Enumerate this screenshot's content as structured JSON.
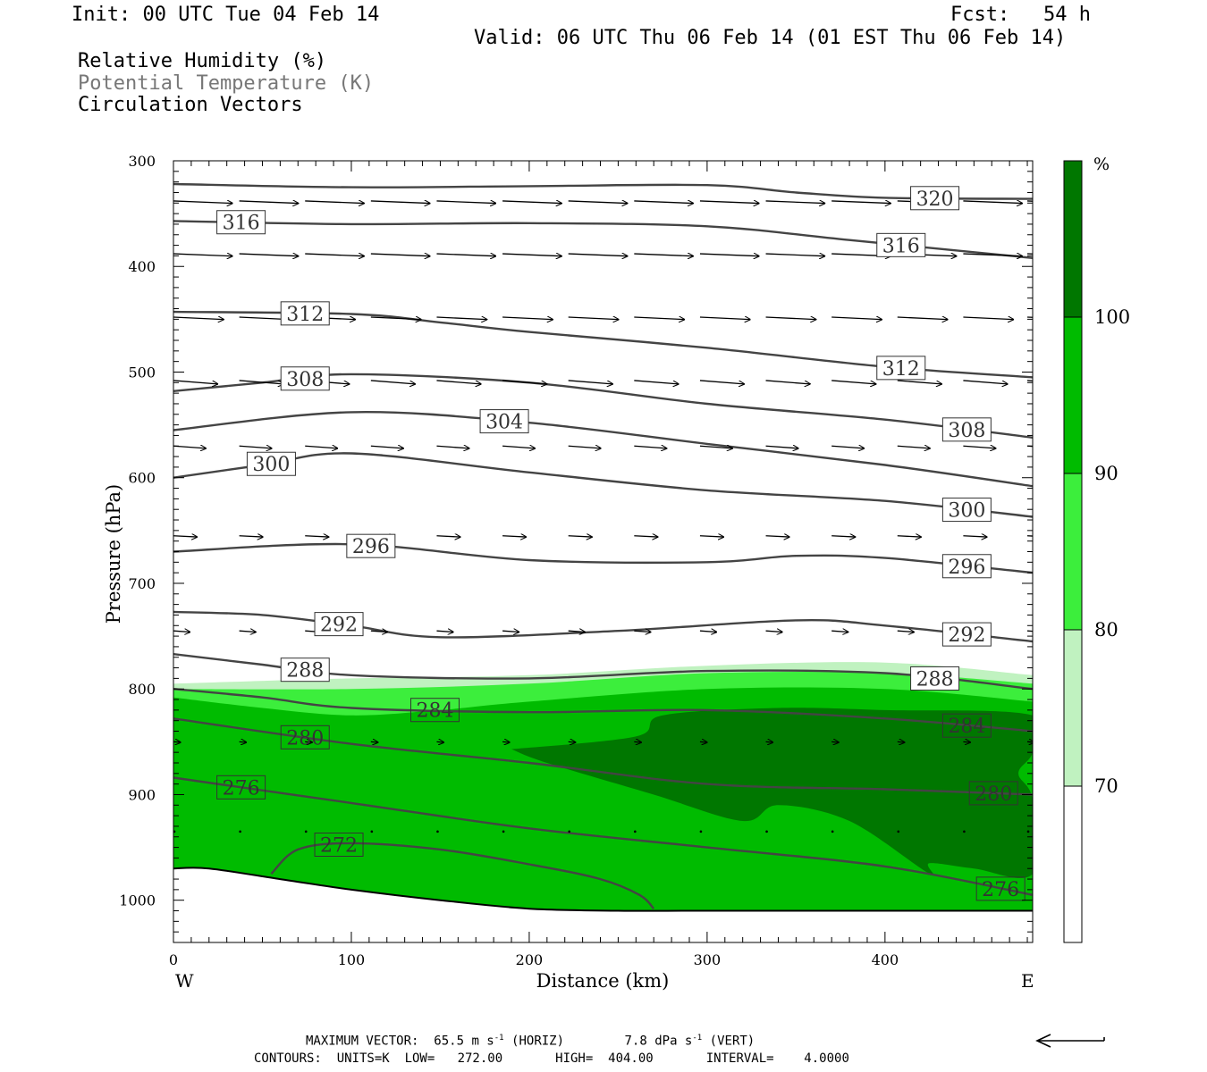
{
  "header": {
    "init": "Init: 00 UTC Tue 04 Feb 14",
    "fcst_label": "Fcst:",
    "fcst_value": "54 h",
    "valid": "Valid: 06 UTC Thu 06 Feb 14 (01 EST Thu 06 Feb 14)",
    "legend": [
      "Relative Humidity (%)",
      "Potential Temperature (K)",
      "Circulation Vectors"
    ]
  },
  "footer": {
    "maximum_vector_label": "MAXIMUM VECTOR:",
    "horiz_value": "65.5",
    "horiz_unit": "m s",
    "horiz_tag": "(HORIZ)",
    "vert_value": "7.8",
    "vert_unit": "dPa s",
    "vert_tag": "(VERT)",
    "exponent": "-1",
    "contours": "CONTOURS:  UNITS=K  LOW=   272.00       HIGH=  404.00       INTERVAL=    4.0000"
  },
  "colorbar": {
    "unit": "%",
    "levels": [
      70,
      80,
      90,
      100
    ],
    "colors": [
      "#ffffff",
      "#c0f2c0",
      "#3cee3c",
      "#00bb00",
      "#007700"
    ]
  },
  "chart_data": {
    "type": "cross-section",
    "xlabel": "Distance (km)",
    "ylabel": "Pressure (hPa)",
    "xlim": [
      0,
      483
    ],
    "ylim": [
      1040,
      300
    ],
    "x_ticks": [
      0,
      100,
      200,
      300,
      400
    ],
    "y_ticks": [
      300,
      400,
      500,
      600,
      700,
      800,
      900,
      1000
    ],
    "x_end_labels": [
      "W",
      "E"
    ],
    "contour_color": "#444444",
    "isentropes": [
      {
        "value": 320,
        "x": [
          0,
          100,
          200,
          300,
          350,
          400,
          483
        ],
        "p": [
          322,
          325,
          324,
          323,
          330,
          335,
          336
        ],
        "label_x": 428
      },
      {
        "value": 316,
        "x": [
          0,
          100,
          200,
          300,
          380,
          483
        ],
        "p": [
          357,
          360,
          359,
          362,
          375,
          392
        ],
        "label_x": 38
      },
      {
        "value": 316,
        "x": [
          0,
          100,
          200,
          300,
          380,
          483
        ],
        "p": [
          357,
          360,
          359,
          362,
          375,
          392
        ],
        "label_x": 409
      },
      {
        "value": 312,
        "x": [
          0,
          100,
          150,
          200,
          300,
          400,
          483
        ],
        "p": [
          443,
          445,
          453,
          462,
          477,
          495,
          505
        ],
        "label_x": 74
      },
      {
        "value": 312,
        "x": [
          0,
          100,
          150,
          200,
          300,
          400,
          483
        ],
        "p": [
          443,
          445,
          453,
          462,
          477,
          495,
          505
        ],
        "label_x": 409
      },
      {
        "value": 308,
        "x": [
          0,
          50,
          100,
          200,
          300,
          400,
          483
        ],
        "p": [
          518,
          510,
          502,
          510,
          530,
          545,
          562
        ],
        "label_x": 74
      },
      {
        "value": 308,
        "x": [
          0,
          50,
          100,
          200,
          300,
          400,
          483
        ],
        "p": [
          518,
          510,
          502,
          510,
          530,
          545,
          562
        ],
        "label_x": 446
      },
      {
        "value": 304,
        "x": [
          0,
          100,
          200,
          300,
          400,
          483
        ],
        "p": [
          555,
          538,
          548,
          568,
          588,
          608
        ],
        "label_x": 186
      },
      {
        "value": 300,
        "x": [
          0,
          50,
          100,
          200,
          300,
          400,
          483
        ],
        "p": [
          600,
          588,
          577,
          595,
          612,
          622,
          637
        ],
        "label_x": 55
      },
      {
        "value": 300,
        "x": [
          0,
          50,
          100,
          200,
          300,
          400,
          483
        ],
        "p": [
          600,
          588,
          577,
          595,
          612,
          622,
          637
        ],
        "label_x": 446
      },
      {
        "value": 296,
        "x": [
          0,
          100,
          200,
          300,
          350,
          400,
          483
        ],
        "p": [
          670,
          663,
          678,
          680,
          674,
          676,
          690
        ],
        "label_x": 111
      },
      {
        "value": 296,
        "x": [
          0,
          100,
          200,
          300,
          350,
          400,
          483
        ],
        "p": [
          670,
          663,
          678,
          680,
          674,
          676,
          690
        ],
        "label_x": 446
      },
      {
        "value": 292,
        "x": [
          0,
          50,
          100,
          150,
          250,
          350,
          400,
          483
        ],
        "p": [
          727,
          730,
          740,
          751,
          745,
          735,
          740,
          755
        ],
        "label_x": 93
      },
      {
        "value": 292,
        "x": [
          0,
          50,
          100,
          150,
          250,
          350,
          400,
          483
        ],
        "p": [
          727,
          730,
          740,
          751,
          745,
          735,
          740,
          755
        ],
        "label_x": 446
      },
      {
        "value": 288,
        "x": [
          0,
          50,
          100,
          200,
          300,
          400,
          483
        ],
        "p": [
          767,
          777,
          787,
          790,
          783,
          785,
          800
        ],
        "label_x": 74
      },
      {
        "value": 288,
        "x": [
          0,
          50,
          100,
          200,
          300,
          400,
          483
        ],
        "p": [
          767,
          777,
          787,
          790,
          783,
          785,
          800
        ],
        "label_x": 428
      },
      {
        "value": 284,
        "x": [
          0,
          50,
          100,
          200,
          300,
          400,
          483
        ],
        "p": [
          800,
          808,
          818,
          822,
          820,
          828,
          840
        ],
        "label_x": 147
      },
      {
        "value": 284,
        "x": [
          0,
          50,
          100,
          200,
          300,
          400,
          483
        ],
        "p": [
          800,
          808,
          818,
          822,
          820,
          828,
          840
        ],
        "label_x": 446
      },
      {
        "value": 280,
        "x": [
          0,
          100,
          200,
          300,
          400,
          483
        ],
        "p": [
          828,
          852,
          870,
          890,
          895,
          900
        ],
        "label_x": 74
      },
      {
        "value": 280,
        "x": [
          0,
          100,
          200,
          300,
          400,
          483
        ],
        "p": [
          828,
          852,
          870,
          890,
          895,
          900
        ],
        "label_x": 461
      },
      {
        "value": 276,
        "x": [
          0,
          100,
          200,
          300,
          400,
          483
        ],
        "p": [
          884,
          908,
          932,
          950,
          968,
          995
        ],
        "label_x": 38
      },
      {
        "value": 276,
        "x": [
          0,
          100,
          200,
          300,
          400,
          483
        ],
        "p": [
          884,
          908,
          932,
          950,
          968,
          995
        ],
        "label_x": 465
      },
      {
        "value": 272,
        "x": [
          55,
          70,
          100,
          150,
          200,
          240,
          262,
          270
        ],
        "p": [
          975,
          952,
          946,
          952,
          966,
          980,
          995,
          1008
        ],
        "label_x": 93
      }
    ],
    "surface": {
      "x": [
        0,
        20,
        60,
        100,
        150,
        200,
        250,
        300,
        400,
        483
      ],
      "p": [
        970,
        970,
        980,
        990,
        1000,
        1008,
        1010,
        1010,
        1010,
        1010
      ]
    },
    "rh_regions": [
      {
        "level": "70-80",
        "x": [
          0,
          100,
          200,
          300,
          400,
          483
        ],
        "p_top": [
          795,
          790,
          787,
          778,
          775,
          787
        ]
      },
      {
        "level": "80-90",
        "x": [
          0,
          100,
          200,
          300,
          400,
          483
        ],
        "p_top": [
          800,
          800,
          795,
          785,
          785,
          795
        ]
      },
      {
        "level": "90-100",
        "x": [
          0,
          50,
          100,
          150,
          200,
          300,
          400,
          483
        ],
        "p_top": [
          808,
          818,
          825,
          820,
          812,
          800,
          800,
          812
        ]
      },
      {
        "level": ">100",
        "outline": [
          [
            190,
            857
          ],
          [
            260,
            845
          ],
          [
            275,
            825
          ],
          [
            340,
            818
          ],
          [
            400,
            820
          ],
          [
            483,
            825
          ],
          [
            483,
            860
          ],
          [
            475,
            880
          ],
          [
            483,
            905
          ],
          [
            483,
            975
          ],
          [
            450,
            970
          ],
          [
            425,
            965
          ],
          [
            425,
            975
          ],
          [
            380,
            925
          ],
          [
            340,
            910
          ],
          [
            320,
            925
          ],
          [
            270,
            900
          ],
          [
            210,
            870
          ]
        ]
      }
    ],
    "vectors": [
      {
        "p": 338,
        "x": [
          0,
          37,
          74,
          111,
          148,
          185,
          222,
          259,
          296,
          333,
          370,
          407,
          444,
          480
        ],
        "u": 1.0,
        "w": -0.04
      },
      {
        "p": 388,
        "x": [
          0,
          37,
          74,
          111,
          148,
          185,
          222,
          259,
          296,
          333,
          370,
          407,
          444,
          480
        ],
        "u": 1.0,
        "w": -0.04
      },
      {
        "p": 448,
        "x": [
          0,
          37,
          74,
          111,
          148,
          185,
          222,
          259,
          296,
          333,
          370,
          407,
          444,
          480
        ],
        "u": 0.85,
        "w": -0.04
      },
      {
        "p": 508,
        "x": [
          0,
          37,
          74,
          111,
          148,
          185,
          222,
          259,
          296,
          333,
          370,
          407,
          444,
          480
        ],
        "u": 0.75,
        "w": -0.06
      },
      {
        "p": 570,
        "x": [
          0,
          37,
          74,
          111,
          148,
          185,
          222,
          259,
          296,
          333,
          370,
          407,
          444,
          480
        ],
        "u": 0.55,
        "w": -0.04
      },
      {
        "p": 655,
        "x": [
          0,
          37,
          74,
          111,
          148,
          185,
          222,
          259,
          296,
          333,
          370,
          407,
          444,
          480
        ],
        "u": 0.4,
        "w": -0.02
      },
      {
        "p": 745,
        "x": [
          0,
          37,
          74,
          111,
          148,
          185,
          222,
          259,
          296,
          333,
          370,
          407,
          444,
          480
        ],
        "u": 0.28,
        "w": -0.02
      },
      {
        "p": 850,
        "x": [
          0,
          37,
          74,
          111,
          148,
          185,
          222,
          259,
          296,
          333,
          370,
          407,
          444,
          480
        ],
        "u": 0.12,
        "w": -0.01
      },
      {
        "p": 935,
        "x": [
          0,
          37,
          74,
          111,
          148,
          185,
          222,
          259,
          296,
          333,
          370,
          407,
          444,
          480
        ],
        "u": 0.06,
        "w": 0.0
      }
    ]
  }
}
